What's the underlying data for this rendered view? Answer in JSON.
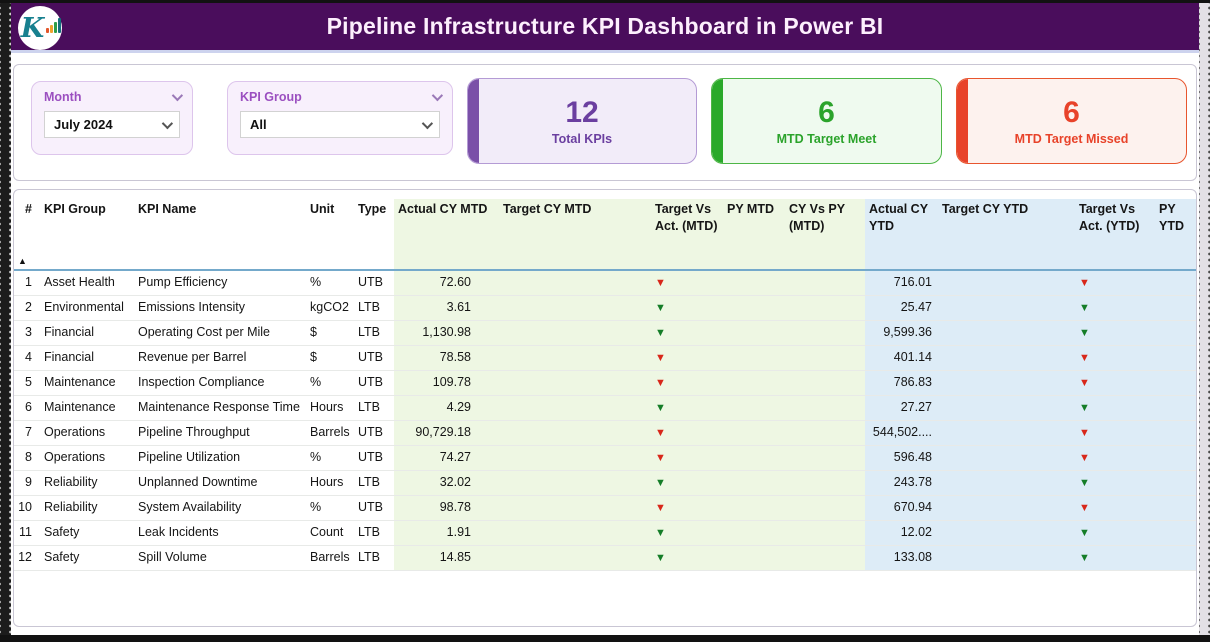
{
  "colors": {
    "banner_bg": "#4a0d5c",
    "purple_accent": "#6b3fa0",
    "green_accent": "#2aa92a",
    "red_accent": "#e8432a",
    "mtd_section_bg": "#eef7e3",
    "ytd_section_bg": "#ddecf7"
  },
  "header": {
    "title": "Pipeline Infrastructure KPI Dashboard  in Power BI",
    "logo_letter": "K"
  },
  "icons": {
    "down_arrow": "▼",
    "sort_asc": "▲",
    "chevron_down": "⌄"
  },
  "filters": [
    {
      "label": "Month",
      "value": "July 2024"
    },
    {
      "label": "KPI Group",
      "value": "All"
    }
  ],
  "cards": [
    {
      "value": "12",
      "label": "Total KPIs"
    },
    {
      "value": "6",
      "label": "MTD Target Meet"
    },
    {
      "value": "6",
      "label": "MTD Target Missed"
    }
  ],
  "table": {
    "columns": [
      {
        "key": "num",
        "label": "#",
        "section": "plain"
      },
      {
        "key": "group",
        "label": "KPI Group",
        "section": "plain"
      },
      {
        "key": "name",
        "label": "KPI Name",
        "section": "plain"
      },
      {
        "key": "unit",
        "label": "Unit",
        "section": "plain"
      },
      {
        "key": "type",
        "label": "Type",
        "section": "plain"
      },
      {
        "key": "actual_mtd",
        "label": "Actual CY MTD",
        "section": "mtd"
      },
      {
        "key": "target_mtd",
        "label": "Target CY MTD",
        "section": "mtd"
      },
      {
        "key": "tva_mtd",
        "label": "Target Vs Act. (MTD)",
        "section": "mtd"
      },
      {
        "key": "py_mtd",
        "label": "PY MTD",
        "section": "mtd"
      },
      {
        "key": "cy_vs_py_mtd",
        "label": "CY Vs PY (MTD)",
        "section": "mtd"
      },
      {
        "key": "actual_ytd",
        "label": "Actual CY YTD",
        "section": "ytd"
      },
      {
        "key": "target_ytd",
        "label": "Target CY YTD",
        "section": "ytd"
      },
      {
        "key": "tva_ytd",
        "label": "Target Vs Act. (YTD)",
        "section": "ytd"
      },
      {
        "key": "py_ytd",
        "label": "PY YTD",
        "section": "ytd"
      }
    ],
    "rows": [
      {
        "num": "1",
        "group": "Asset Health",
        "name": "Pump Efficiency",
        "unit": "%",
        "type": "UTB",
        "actual_mtd": "72.60",
        "target_mtd": "",
        "tva_mtd": "red",
        "py_mtd": "",
        "cy_vs_py_mtd": "",
        "actual_ytd": "716.01",
        "target_ytd": "",
        "tva_ytd": "red",
        "py_ytd": ""
      },
      {
        "num": "2",
        "group": "Environmental",
        "name": "Emissions Intensity",
        "unit": "kgCO2",
        "type": "LTB",
        "actual_mtd": "3.61",
        "target_mtd": "",
        "tva_mtd": "green",
        "py_mtd": "",
        "cy_vs_py_mtd": "",
        "actual_ytd": "25.47",
        "target_ytd": "",
        "tva_ytd": "green",
        "py_ytd": ""
      },
      {
        "num": "3",
        "group": "Financial",
        "name": "Operating Cost per Mile",
        "unit": "$",
        "type": "LTB",
        "actual_mtd": "1,130.98",
        "target_mtd": "",
        "tva_mtd": "green",
        "py_mtd": "",
        "cy_vs_py_mtd": "",
        "actual_ytd": "9,599.36",
        "target_ytd": "",
        "tva_ytd": "green",
        "py_ytd": ""
      },
      {
        "num": "4",
        "group": "Financial",
        "name": "Revenue per Barrel",
        "unit": "$",
        "type": "UTB",
        "actual_mtd": "78.58",
        "target_mtd": "",
        "tva_mtd": "red",
        "py_mtd": "",
        "cy_vs_py_mtd": "",
        "actual_ytd": "401.14",
        "target_ytd": "",
        "tva_ytd": "red",
        "py_ytd": ""
      },
      {
        "num": "5",
        "group": "Maintenance",
        "name": "Inspection Compliance",
        "unit": "%",
        "type": "UTB",
        "actual_mtd": "109.78",
        "target_mtd": "",
        "tva_mtd": "red",
        "py_mtd": "",
        "cy_vs_py_mtd": "",
        "actual_ytd": "786.83",
        "target_ytd": "",
        "tva_ytd": "red",
        "py_ytd": ""
      },
      {
        "num": "6",
        "group": "Maintenance",
        "name": "Maintenance Response Time",
        "unit": "Hours",
        "type": "LTB",
        "actual_mtd": "4.29",
        "target_mtd": "",
        "tva_mtd": "green",
        "py_mtd": "",
        "cy_vs_py_mtd": "",
        "actual_ytd": "27.27",
        "target_ytd": "",
        "tva_ytd": "green",
        "py_ytd": ""
      },
      {
        "num": "7",
        "group": "Operations",
        "name": "Pipeline Throughput",
        "unit": "Barrels",
        "type": "UTB",
        "actual_mtd": "90,729.18",
        "target_mtd": "",
        "tva_mtd": "red",
        "py_mtd": "",
        "cy_vs_py_mtd": "",
        "actual_ytd": "544,502....",
        "target_ytd": "",
        "tva_ytd": "red",
        "py_ytd": ""
      },
      {
        "num": "8",
        "group": "Operations",
        "name": "Pipeline Utilization",
        "unit": "%",
        "type": "UTB",
        "actual_mtd": "74.27",
        "target_mtd": "",
        "tva_mtd": "red",
        "py_mtd": "",
        "cy_vs_py_mtd": "",
        "actual_ytd": "596.48",
        "target_ytd": "",
        "tva_ytd": "red",
        "py_ytd": ""
      },
      {
        "num": "9",
        "group": "Reliability",
        "name": "Unplanned Downtime",
        "unit": "Hours",
        "type": "LTB",
        "actual_mtd": "32.02",
        "target_mtd": "",
        "tva_mtd": "green",
        "py_mtd": "",
        "cy_vs_py_mtd": "",
        "actual_ytd": "243.78",
        "target_ytd": "",
        "tva_ytd": "green",
        "py_ytd": ""
      },
      {
        "num": "10",
        "group": "Reliability",
        "name": "System Availability",
        "unit": "%",
        "type": "UTB",
        "actual_mtd": "98.78",
        "target_mtd": "",
        "tva_mtd": "red",
        "py_mtd": "",
        "cy_vs_py_mtd": "",
        "actual_ytd": "670.94",
        "target_ytd": "",
        "tva_ytd": "red",
        "py_ytd": ""
      },
      {
        "num": "11",
        "group": "Safety",
        "name": "Leak Incidents",
        "unit": "Count",
        "type": "LTB",
        "actual_mtd": "1.91",
        "target_mtd": "",
        "tva_mtd": "green",
        "py_mtd": "",
        "cy_vs_py_mtd": "",
        "actual_ytd": "12.02",
        "target_ytd": "",
        "tva_ytd": "green",
        "py_ytd": ""
      },
      {
        "num": "12",
        "group": "Safety",
        "name": "Spill Volume",
        "unit": "Barrels",
        "type": "LTB",
        "actual_mtd": "14.85",
        "target_mtd": "",
        "tva_mtd": "green",
        "py_mtd": "",
        "cy_vs_py_mtd": "",
        "actual_ytd": "133.08",
        "target_ytd": "",
        "tva_ytd": "green",
        "py_ytd": ""
      }
    ]
  }
}
